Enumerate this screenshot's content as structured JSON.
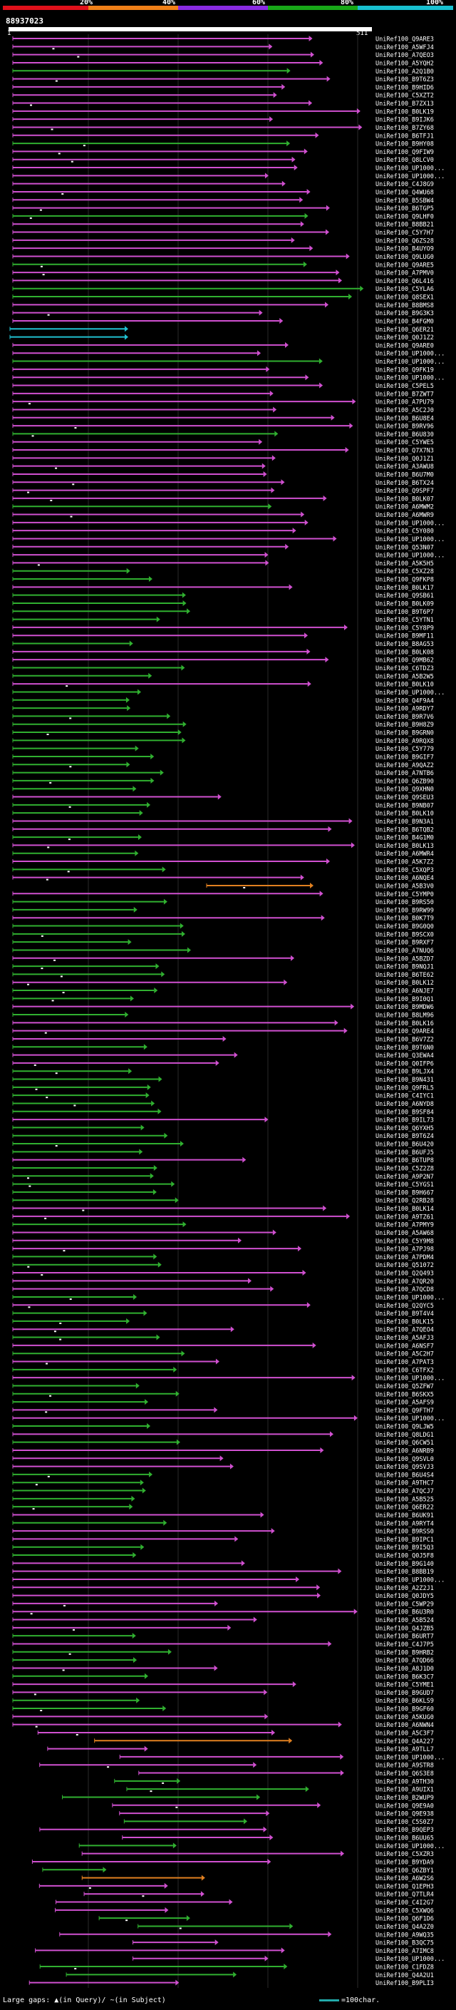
{
  "legend": {
    "segments": [
      {
        "label": "20%",
        "color": "#e0101a"
      },
      {
        "label": "40%",
        "color": "#f08018"
      },
      {
        "label": "60%",
        "color": "#8a2be2"
      },
      {
        "label": "80%",
        "color": "#18a818"
      },
      {
        "label": "100%",
        "color": "#18c0d0"
      }
    ]
  },
  "query": {
    "id": "88937023",
    "start": "1",
    "end": "511"
  },
  "hits": [
    "UniRef100_Q9ARE3",
    "UniRef100_A5WFJ4",
    "UniRef100_A7QEO3",
    "UniRef100_A5YQH2",
    "UniRef100_A2Q1B0",
    "UniRef100_B9T6Z3",
    "UniRef100_B9HID6",
    "UniRef100_C5XZT2",
    "UniRef100_B7ZX13",
    "UniRef100_B0LK19",
    "UniRef100_B9IJK6",
    "UniRef100_B7ZY68",
    "UniRef100_B6TFJ1",
    "UniRef100_B9HY08",
    "UniRef100_Q9FIW9",
    "UniRef100_Q8LCV0",
    "UniRef100_UP1000...",
    "UniRef100_UP1000...",
    "UniRef100_C4J8G9",
    "UniRef100_Q4WU68",
    "UniRef100_B5SBW4",
    "UniRef100_B6TGP5",
    "UniRef100_Q9LHF0",
    "UniRef100_B8BB21",
    "UniRef100_C5Y7H7",
    "UniRef100_Q6ZS28",
    "UniRef100_B4UYO9",
    "UniRef100_Q9LUG0",
    "UniRef100_Q9ARE5",
    "UniRef100_A7PMV0",
    "UniRef100_Q6L416",
    "UniRef100_C5YLA6",
    "UniRef100_Q8SEX1",
    "UniRef100_B8BMS8",
    "UniRef100_B9G3K3",
    "UniRef100_B4FGM0",
    "UniRef100_Q6ER21",
    "UniRef100_Q0J1Z2",
    "UniRef100_Q9ARE0",
    "UniRef100_UP1000...",
    "UniRef100_UP1000...",
    "UniRef100_Q9FK19",
    "UniRef100_UP1000...",
    "UniRef100_C5PEL5",
    "UniRef100_B7ZWT7",
    "UniRef100_A7PU79",
    "UniRef100_A5C2J0",
    "UniRef100_B6U8E4",
    "UniRef100_B9RV96",
    "UniRef100_B6U830",
    "UniRef100_C5YWE5",
    "UniRef100_Q7X7N3",
    "UniRef100_Q0J1Z1",
    "UniRef100_A3AWU8",
    "UniRef100_B6U7M0",
    "UniRef100_B6TX24",
    "UniRef100_Q9SPF7",
    "UniRef100_B0LK07",
    "UniRef100_A6MWM2",
    "UniRef100_A6MWR9",
    "UniRef100_UP1000...",
    "UniRef100_C5Y080",
    "UniRef100_UP1000...",
    "UniRef100_Q53N07",
    "UniRef100_UP1000...",
    "UniRef100_A5K5H5",
    "UniRef100_C5XZ28",
    "UniRef100_Q9FKP8",
    "UniRef100_B0LK17",
    "UniRef100_Q9SB61",
    "UniRef100_B0LK09",
    "UniRef100_B9T6P7",
    "UniRef100_C5YTN1",
    "UniRef100_C5Y8P9",
    "UniRef100_B9MF11",
    "UniRef100_B8AG53",
    "UniRef100_B0LK08",
    "UniRef100_Q9MB62",
    "UniRef100_C6TDZ3",
    "UniRef100_A5B2W5",
    "UniRef100_B0LK10",
    "UniRef100_UP1000...",
    "UniRef100_Q4F9A4",
    "UniRef100_A9RDY7",
    "UniRef100_B9R7V6",
    "UniRef100_B9H8Z9",
    "UniRef100_B9GRN0",
    "UniRef100_A9RQX8",
    "UniRef100_C5Y779",
    "UniRef100_B9GIF7",
    "UniRef100_A9QAZ2",
    "UniRef100_A7NTB6",
    "UniRef100_Q6ZB90",
    "UniRef100_Q9XHN0",
    "UniRef100_Q9SEU3",
    "UniRef100_B9NB07",
    "UniRef100_B0LK10",
    "UniRef100_B9N3A1",
    "UniRef100_B6TQB2",
    "UniRef100_B4G1M0",
    "UniRef100_B0LK13",
    "UniRef100_A6MWR4",
    "UniRef100_A5K7Z2",
    "UniRef100_C5XQP3",
    "UniRef100_A6NQE4",
    "UniRef100_A5B3V0",
    "UniRef100_C5YMP0",
    "UniRef100_B9RS50",
    "UniRef100_B9RW99",
    "UniRef100_B0K7T9",
    "UniRef100_B9G0Q0",
    "UniRef100_B9SCX0",
    "UniRef100_B9RXF7",
    "UniRef100_A7NUQ6",
    "UniRef100_A5BZD7",
    "UniRef100_B9NQJ1",
    "UniRef100_B6TE62",
    "UniRef100_B0LK12",
    "UniRef100_A6NJE7",
    "UniRef100_B9I0Q1",
    "UniRef100_B9MDW6",
    "UniRef100_B8LM96",
    "UniRef100_B0LK16",
    "UniRef100_Q9ARE4",
    "UniRef100_B6V7Z2",
    "UniRef100_B9T6N0",
    "UniRef100_Q3EWA4",
    "UniRef100_Q0IFP6",
    "UniRef100_B9LJX4",
    "UniRef100_B9N431",
    "UniRef100_Q9FRL5",
    "UniRef100_C4IYC1",
    "UniRef100_A6NYD8",
    "UniRef100_B9SF84",
    "UniRef100_B9IL73",
    "UniRef100_Q6YXH5",
    "UniRef100_B9T6Z4",
    "UniRef100_B6U420",
    "UniRef100_B6UFJ5",
    "UniRef100_B6TUP8",
    "UniRef100_C5Z2Z8",
    "UniRef100_A9P2N7",
    "UniRef100_C5YGS1",
    "UniRef100_B9H667",
    "UniRef100_Q2RB28",
    "UniRef100_B0LK14",
    "UniRef100_A9TZ61",
    "UniRef100_A7PMY9",
    "UniRef100_A5AW68",
    "UniRef100_C5Y9M8",
    "UniRef100_A7PJ98",
    "UniRef100_A7PDM4",
    "UniRef100_Q51072",
    "UniRef100_Q2Q493",
    "UniRef100_A7QR20",
    "UniRef100_A7QCD8",
    "UniRef100_UP1000...",
    "UniRef100_Q2QYC5",
    "UniRef100_B9T4V4",
    "UniRef100_B0LK15",
    "UniRef100_A7QEO4",
    "UniRef100_A5AFJ3",
    "UniRef100_A6NSF7",
    "UniRef100_A5C2H7",
    "UniRef100_A7PAT3",
    "UniRef100_C6TFX2",
    "UniRef100_UP1000...",
    "UniRef100_Q5ZFW7",
    "UniRef100_B6SKX5",
    "UniRef100_A5AFS9",
    "UniRef100_Q9FTH7",
    "UniRef100_UP1000...",
    "UniRef100_Q9LJW5",
    "UniRef100_Q8LDG1",
    "UniRef100_Q6CW51",
    "UniRef100_A6NRB9",
    "UniRef100_Q9SVL0",
    "UniRef100_Q9SVJ3",
    "UniRef100_B6U4S4",
    "UniRef100_A9THC7",
    "UniRef100_A7QCJ7",
    "UniRef100_A5B525",
    "UniRef100_Q6ER22",
    "UniRef100_B6UK91",
    "UniRef100_A9RYT4",
    "UniRef100_B9RSS0",
    "UniRef100_B9IPC1",
    "UniRef100_B9I5Q3",
    "UniRef100_Q0J5F8",
    "UniRef100_B9G140",
    "UniRef100_B8BB19",
    "UniRef100_UP1000...",
    "UniRef100_A2Z2J1",
    "UniRef100_Q0JDY5",
    "UniRef100_C5WP29",
    "UniRef100_B6U3R0",
    "UniRef100_A5B524",
    "UniRef100_Q4JZB5",
    "UniRef100_B6URT7",
    "UniRef100_C4J7P5",
    "UniRef100_B9HRB2",
    "UniRef100_A7QD66",
    "UniRef100_A8J1D0",
    "UniRef100_B6K3C7",
    "UniRef100_C5YME1",
    "UniRef100_B9GUD7",
    "UniRef100_B6KLS9",
    "UniRef100_B9GF60",
    "UniRef100_A5KUG0",
    "UniRef100_A6NWN4",
    "UniRef100_A5C3F7",
    "UniRef100_Q4A227",
    "UniRef100_A9TLL7",
    "UniRef100_UP1000...",
    "UniRef100_A9STR8",
    "UniRef100_Q6S3E8",
    "UniRef100_A9TH30",
    "UniRef100_A9UIX1",
    "UniRef100_B2WUP9",
    "UniRef100_Q9E9A0",
    "UniRef100_Q9E938",
    "UniRef100_C5S0Z7",
    "UniRef100_B9QEP3",
    "UniRef100_B6UU65",
    "UniRef100_UP1000...",
    "UniRef100_C5XZR3",
    "UniRef100_B9YDA9",
    "UniRef100_Q6ZBY1",
    "UniRef100_A6W2S6",
    "UniRef100_Q1EPH3",
    "UniRef100_Q7TLR4",
    "UniRef100_C4I2G7",
    "UniRef100_C5XWQ6",
    "UniRef100_Q6F1D6",
    "UniRef100_Q4A2Z0",
    "UniRef100_A9WQ35",
    "UniRef100_B3QC75",
    "UniRef100_A7IMC8",
    "UniRef100_UP1000...",
    "UniRef100_C1FDZ8",
    "UniRef100_Q4A2U1",
    "UniRef100_B9PLI3"
  ],
  "footer": {
    "gaps_label": "Large gaps: ▲(in Query)/ ~(in Subject)",
    "scale_label": "=100char."
  }
}
